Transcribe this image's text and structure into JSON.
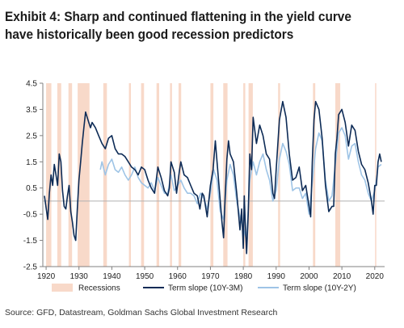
{
  "title_line1": "Exhibit 4: Sharp and continued flattening in the yield curve",
  "title_line2": "have historically been good recession predictors",
  "source": "Source: GFD, Datastream, Goldman Sachs Global Investment Research",
  "chart_data": {
    "type": "line",
    "xlim": [
      1919,
      2023
    ],
    "ylim": [
      -2.5,
      4.5
    ],
    "yticks": [
      4.5,
      3.5,
      2.5,
      1.5,
      0.5,
      -0.5,
      -1.5,
      -2.5
    ],
    "ytick_labels": [
      "4.5",
      "3.5",
      "2.5",
      "1.5",
      "0.5",
      "-0.5",
      "-1.5",
      "-2.5"
    ],
    "xticks": [
      1920,
      1930,
      1940,
      1950,
      1960,
      1970,
      1980,
      1990,
      2000,
      2010,
      2020
    ],
    "xtick_labels": [
      "1920",
      "1930",
      "1940",
      "1950",
      "1960",
      "1970",
      "1980",
      "1990",
      "2000",
      "2010",
      "2020"
    ],
    "grid": false,
    "zero_line": 0,
    "legend_position": "bottom",
    "legend": {
      "recessions": "Recessions",
      "term_10y3m": "Term slope (10Y-3M)",
      "term_10y2y": "Term slope (10Y-2Y)"
    },
    "colors": {
      "recession": "#f8d9c9",
      "term_10y3m": "#0d2b56",
      "term_10y2y": "#9ec4e6",
      "zero_line": "#b0b0b0",
      "axis": "#808080"
    },
    "recessions": [
      [
        1920.0,
        1921.6
      ],
      [
        1923.4,
        1924.6
      ],
      [
        1926.8,
        1927.9
      ],
      [
        1929.6,
        1933.2
      ],
      [
        1937.4,
        1938.5
      ],
      [
        1945.2,
        1945.8
      ],
      [
        1948.9,
        1949.8
      ],
      [
        1953.6,
        1954.4
      ],
      [
        1957.7,
        1958.3
      ],
      [
        1960.3,
        1961.1
      ],
      [
        1970.0,
        1970.9
      ],
      [
        1973.9,
        1975.2
      ],
      [
        1980.0,
        1980.6
      ],
      [
        1981.6,
        1982.9
      ],
      [
        1990.6,
        1991.2
      ],
      [
        2001.2,
        2001.9
      ],
      [
        2008.0,
        2009.5
      ],
      [
        2020.1,
        2020.4
      ]
    ],
    "series": [
      {
        "name": "Term slope (10Y-3M)",
        "x": [
          1919.5,
          1920.5,
          1921.0,
          1921.5,
          1922.0,
          1922.5,
          1923.0,
          1923.5,
          1924.0,
          1924.5,
          1925.0,
          1925.5,
          1926.0,
          1926.5,
          1927.0,
          1927.5,
          1928.0,
          1928.5,
          1929.0,
          1929.5,
          1930.0,
          1930.5,
          1931.0,
          1931.5,
          1932.0,
          1932.5,
          1933.0,
          1933.5,
          1934.0,
          1935.0,
          1936.0,
          1937.0,
          1938.0,
          1939.0,
          1940.0,
          1941.0,
          1942.0,
          1943.0,
          1944.0,
          1945.0,
          1946.0,
          1947.0,
          1948.0,
          1949.0,
          1950.0,
          1951.0,
          1952.0,
          1953.0,
          1954.0,
          1955.0,
          1956.0,
          1957.0,
          1957.5,
          1958.0,
          1959.0,
          1959.7,
          1960.5,
          1961.0,
          1962.0,
          1963.0,
          1964.0,
          1965.0,
          1966.0,
          1966.8,
          1967.5,
          1968.0,
          1969.0,
          1969.5,
          1970.0,
          1970.8,
          1971.5,
          1972.0,
          1973.0,
          1973.5,
          1974.0,
          1974.5,
          1975.0,
          1975.5,
          1976.0,
          1977.0,
          1978.0,
          1978.5,
          1979.0,
          1979.5,
          1980.0,
          1980.3,
          1980.6,
          1981.0,
          1981.5,
          1982.0,
          1982.5,
          1983.0,
          1984.0,
          1985.0,
          1986.0,
          1987.0,
          1988.0,
          1989.0,
          1989.5,
          1990.0,
          1991.0,
          1992.0,
          1993.0,
          1994.0,
          1995.0,
          1996.0,
          1997.0,
          1998.0,
          1999.0,
          2000.0,
          2000.5,
          2001.0,
          2001.5,
          2002.0,
          2003.0,
          2004.0,
          2005.0,
          2006.0,
          2006.5,
          2007.0,
          2007.5,
          2008.0,
          2008.5,
          2009.0,
          2010.0,
          2011.0,
          2012.0,
          2013.0,
          2014.0,
          2015.0,
          2016.0,
          2017.0,
          2018.0,
          2019.0,
          2019.5,
          2020.0,
          2020.5,
          2021.0,
          2021.5,
          2022.0
        ],
        "values": [
          0.2,
          -0.7,
          0.3,
          1.0,
          0.6,
          1.4,
          1.0,
          0.6,
          1.8,
          1.5,
          0.4,
          -0.2,
          -0.3,
          0.2,
          0.6,
          -0.4,
          -0.8,
          -1.3,
          -1.5,
          -0.3,
          0.8,
          1.5,
          2.2,
          2.8,
          3.4,
          3.2,
          3.0,
          2.8,
          3.0,
          2.8,
          2.5,
          2.2,
          2.0,
          2.4,
          2.5,
          2.0,
          1.8,
          1.8,
          1.7,
          1.5,
          1.3,
          1.2,
          1.0,
          1.3,
          1.2,
          0.8,
          0.5,
          0.3,
          1.3,
          0.9,
          0.4,
          0.2,
          0.5,
          1.5,
          1.1,
          0.3,
          1.1,
          1.5,
          1.0,
          0.9,
          0.6,
          0.3,
          0.2,
          -0.3,
          0.3,
          0.2,
          -0.6,
          0.0,
          0.6,
          1.2,
          2.3,
          1.5,
          0.0,
          -0.8,
          -1.4,
          0.2,
          1.6,
          2.3,
          1.8,
          1.5,
          0.3,
          -0.4,
          -1.1,
          -0.3,
          -1.8,
          0.2,
          -0.8,
          -2.0,
          -0.5,
          1.8,
          1.2,
          3.2,
          2.2,
          2.9,
          2.5,
          1.8,
          1.6,
          0.3,
          0.1,
          1.2,
          3.1,
          3.8,
          3.2,
          1.8,
          0.8,
          0.9,
          1.3,
          0.4,
          0.6,
          -0.2,
          -0.6,
          1.5,
          3.1,
          3.8,
          3.5,
          2.4,
          0.6,
          -0.4,
          -0.3,
          -0.2,
          -0.2,
          1.8,
          2.4,
          3.3,
          3.5,
          3.0,
          2.1,
          2.9,
          2.7,
          1.9,
          1.4,
          1.2,
          0.7,
          0.0,
          -0.5,
          0.6,
          0.6,
          1.5,
          1.8,
          1.5
        ]
      },
      {
        "name": "Term slope (10Y-2Y)",
        "x": [
          1936.5,
          1937.0,
          1938.0,
          1939.0,
          1940.0,
          1941.0,
          1942.0,
          1943.0,
          1944.0,
          1945.0,
          1946.0,
          1947.0,
          1948.0,
          1949.0,
          1950.0,
          1951.0,
          1952.0,
          1953.0,
          1954.0,
          1955.0,
          1956.0,
          1957.0,
          1958.0,
          1959.0,
          1960.0,
          1961.0,
          1962.0,
          1963.0,
          1964.0,
          1965.0,
          1966.0,
          1967.0,
          1968.0,
          1969.0,
          1970.0,
          1971.0,
          1972.0,
          1973.0,
          1974.0,
          1975.0,
          1976.0,
          1977.0,
          1978.0,
          1979.0,
          1980.0,
          1981.0,
          1982.0,
          1983.0,
          1984.0,
          1985.0,
          1986.0,
          1987.0,
          1988.0,
          1989.0,
          1990.0,
          1991.0,
          1992.0,
          1993.0,
          1994.0,
          1995.0,
          1996.0,
          1997.0,
          1998.0,
          1999.0,
          2000.0,
          2001.0,
          2002.0,
          2003.0,
          2004.0,
          2005.0,
          2006.0,
          2007.0,
          2008.0,
          2009.0,
          2010.0,
          2011.0,
          2012.0,
          2013.0,
          2014.0,
          2015.0,
          2016.0,
          2017.0,
          2018.0,
          2019.0,
          2020.0,
          2021.0,
          2022.0
        ],
        "values": [
          1.2,
          1.5,
          1.0,
          1.4,
          1.6,
          1.2,
          1.1,
          1.3,
          1.0,
          0.8,
          1.0,
          1.3,
          0.9,
          0.7,
          0.6,
          0.5,
          0.7,
          0.4,
          0.9,
          0.6,
          0.3,
          0.3,
          1.0,
          0.4,
          0.6,
          0.8,
          0.5,
          0.3,
          0.3,
          0.2,
          -0.1,
          0.3,
          0.1,
          -0.3,
          0.3,
          1.2,
          0.8,
          -0.4,
          -0.7,
          0.8,
          1.4,
          1.0,
          0.0,
          -0.6,
          -1.0,
          -1.5,
          0.8,
          1.5,
          1.0,
          1.5,
          1.8,
          1.2,
          0.8,
          0.0,
          0.4,
          1.6,
          2.2,
          1.9,
          1.4,
          0.4,
          0.5,
          0.5,
          0.1,
          0.3,
          -0.5,
          0.7,
          2.0,
          2.6,
          2.3,
          0.8,
          0.0,
          0.2,
          1.4,
          2.6,
          2.8,
          2.5,
          1.6,
          2.1,
          2.2,
          1.5,
          1.0,
          0.8,
          0.3,
          0.0,
          0.4,
          1.3,
          1.4
        ]
      }
    ]
  }
}
